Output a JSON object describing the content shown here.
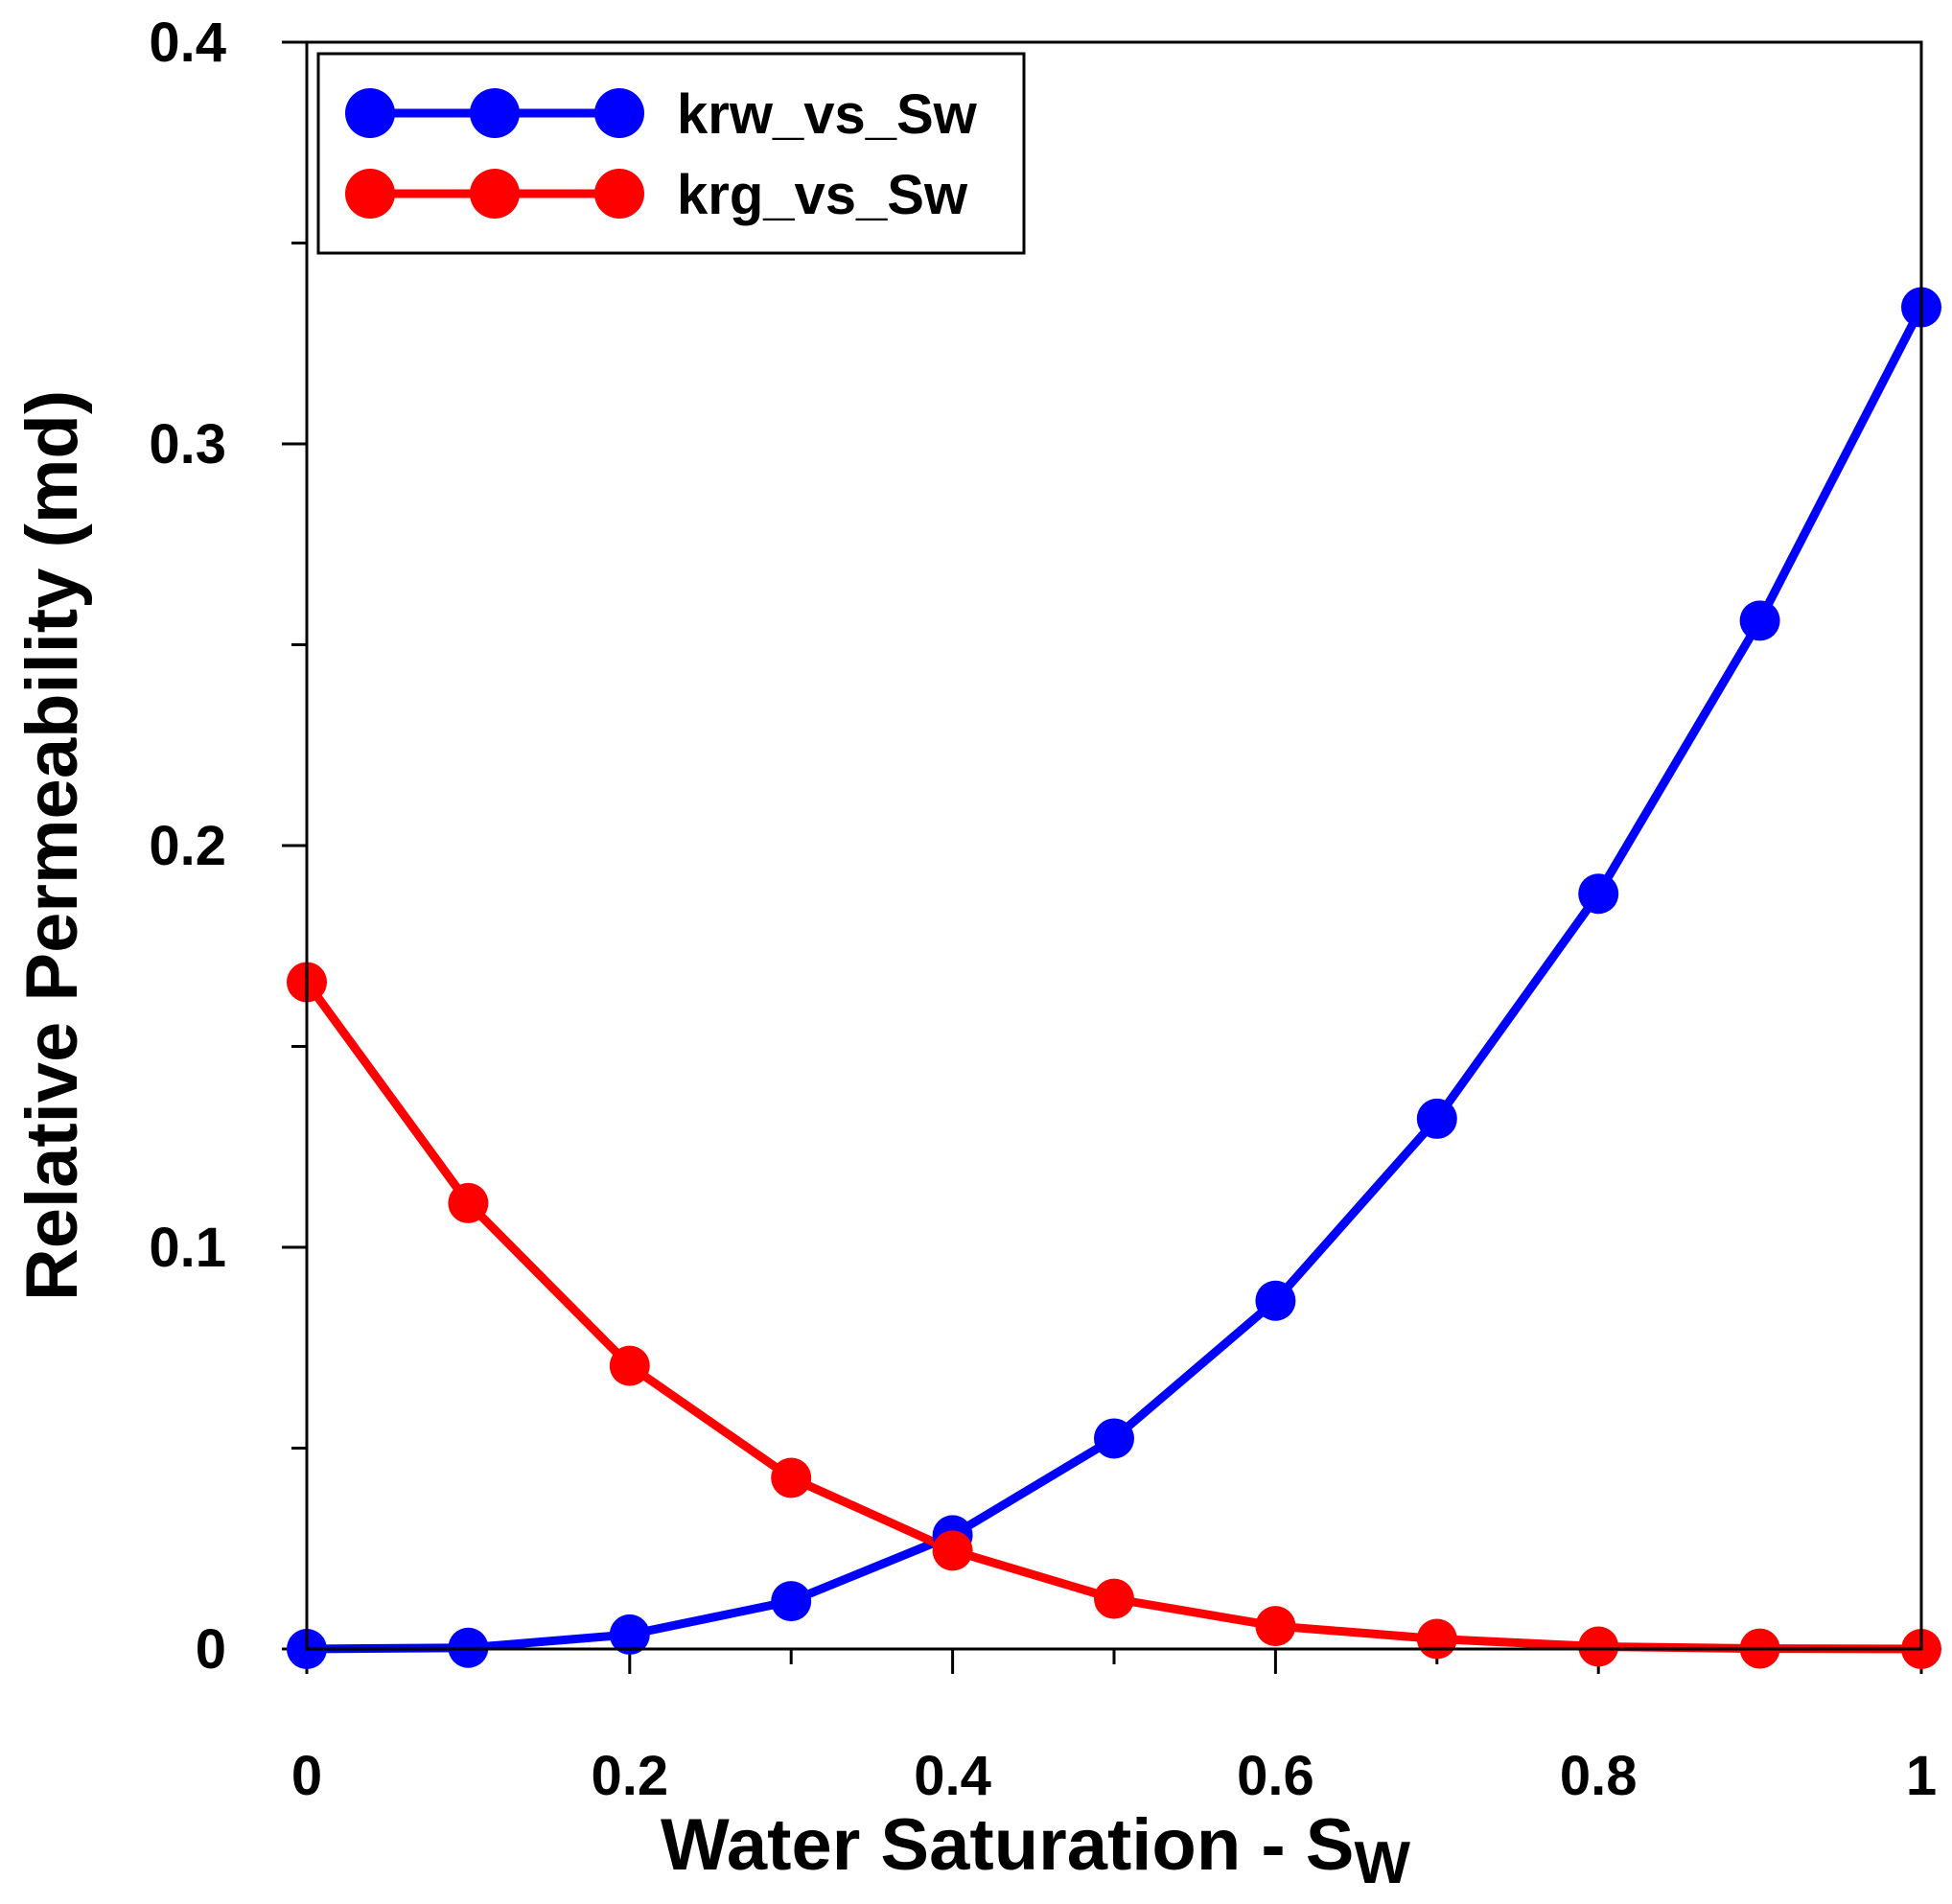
{
  "chart_data": {
    "type": "line",
    "title": "",
    "xlabel": "Water Saturation - S",
    "xlabel_subscript": "W",
    "ylabel": "Relative Permeability (md)",
    "xlim": [
      0,
      1
    ],
    "ylim": [
      0,
      0.4
    ],
    "x_ticks": [
      0,
      0.2,
      0.4,
      0.6,
      0.8,
      1
    ],
    "x_tick_labels": [
      "0",
      "0.2",
      "0.4",
      "0.6",
      "0.8",
      "1"
    ],
    "x_minor_ticks": [
      0.1,
      0.3,
      0.5,
      0.7,
      0.9
    ],
    "y_ticks": [
      0,
      0.1,
      0.2,
      0.3,
      0.4
    ],
    "y_tick_labels": [
      "0",
      "0.1",
      "0.2",
      "0.3",
      "0.4"
    ],
    "y_minor_ticks": [
      0.05,
      0.15,
      0.25,
      0.35
    ],
    "grid": false,
    "legend_position": "top-left",
    "x": [
      0,
      0.1,
      0.2,
      0.3,
      0.4,
      0.5,
      0.6,
      0.7,
      0.8,
      0.9,
      1.0
    ],
    "series": [
      {
        "name": "krw_vs_Sw",
        "color": "#0000ff",
        "values": [
          0.0,
          0.0003,
          0.0036,
          0.0119,
          0.0283,
          0.0524,
          0.0867,
          0.132,
          0.188,
          0.256,
          0.334
        ]
      },
      {
        "name": "krg_vs_Sw",
        "color": "#ff0000",
        "values": [
          0.166,
          0.111,
          0.0705,
          0.0426,
          0.0245,
          0.0125,
          0.0057,
          0.0025,
          0.0006,
          0.0001,
          0.0
        ]
      }
    ]
  }
}
